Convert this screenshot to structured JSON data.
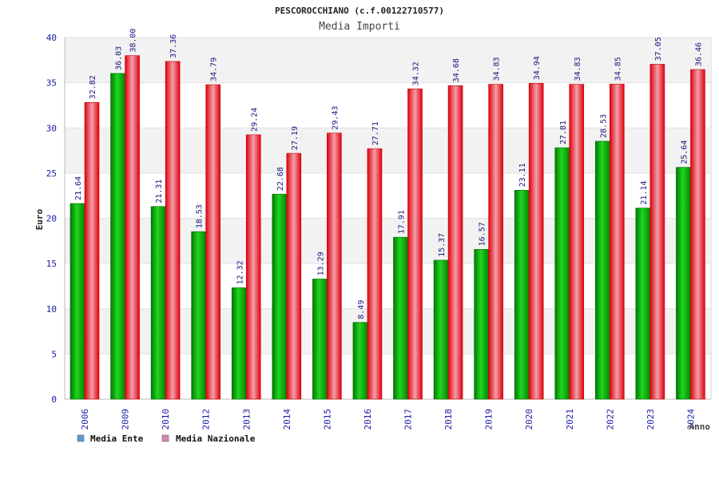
{
  "chart_data": {
    "type": "bar",
    "title": "PESCOROCCHIANO (c.f.00122710577)",
    "subtitle": "Media Importi",
    "xlabel": "Anno",
    "ylabel": "Euro",
    "ylim": [
      0,
      40
    ],
    "yticks": [
      0,
      5,
      10,
      15,
      20,
      25,
      30,
      35,
      40
    ],
    "grid": true,
    "legend_position": "bottom-left",
    "categories": [
      "2006",
      "2009",
      "2010",
      "2012",
      "2013",
      "2014",
      "2015",
      "2016",
      "2017",
      "2018",
      "2019",
      "2020",
      "2021",
      "2022",
      "2023",
      "2024"
    ],
    "series": [
      {
        "name": "Media Ente",
        "color": "#00aa00",
        "legend_color": "#5b9bd5",
        "values": [
          21.64,
          36.03,
          21.31,
          18.53,
          12.32,
          22.68,
          13.29,
          8.49,
          17.91,
          15.37,
          16.57,
          23.11,
          27.81,
          28.53,
          21.14,
          25.64
        ],
        "labels": [
          "21.64",
          "36.03",
          "21.31",
          "18.53",
          "12.32",
          "22.68",
          "13.29",
          "8.49",
          "17.91",
          "15.37",
          "16.57",
          "23.11",
          "27.81",
          "28.53",
          "21.14",
          "25.64"
        ]
      },
      {
        "name": "Media Nazionale",
        "color": "#dd0000",
        "legend_color": "#d986b4",
        "values": [
          32.82,
          38.0,
          37.36,
          34.79,
          29.24,
          27.19,
          29.43,
          27.71,
          34.32,
          34.68,
          34.83,
          34.94,
          34.83,
          34.85,
          37.05,
          36.46
        ],
        "labels": [
          "32.82",
          "38.00",
          "37.36",
          "34.79",
          "29.24",
          "27.19",
          "29.43",
          "27.71",
          "34.32",
          "34.68",
          "34.83",
          "34.94",
          "34.83",
          "34.85",
          "37.05",
          "36.46"
        ]
      }
    ]
  }
}
